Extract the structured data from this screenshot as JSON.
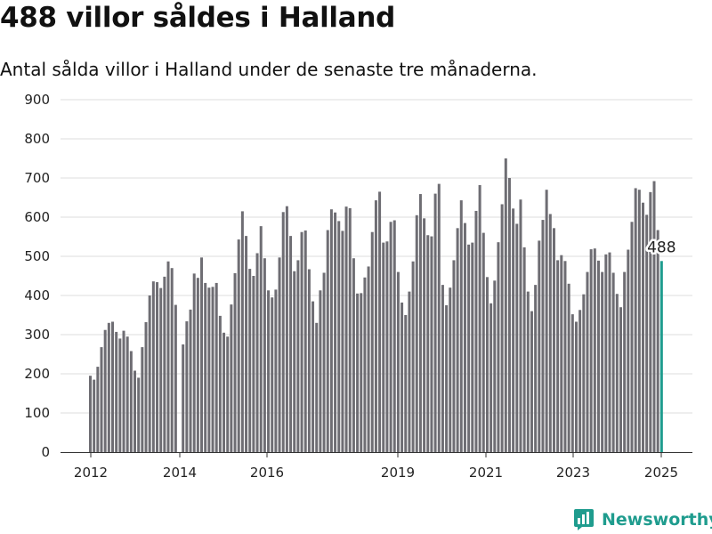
{
  "header": {
    "title": "488 villor såldes i Halland",
    "subtitle": "Antal sålda villor i Halland under de senaste tre månaderna."
  },
  "brand": {
    "name": "Newsworthy",
    "color": "#1f9c8e"
  },
  "colors": {
    "bar": "#6e6d73",
    "highlight": "#1f9c8e",
    "grid": "#dddddd",
    "axis": "#333333"
  },
  "chart_data": {
    "type": "bar",
    "title": "488 villor såldes i Halland",
    "subtitle": "Antal sålda villor i Halland under de senaste tre månaderna.",
    "xlabel": "",
    "ylabel": "",
    "ylim": [
      0,
      900
    ],
    "yticks": [
      0,
      100,
      200,
      300,
      400,
      500,
      600,
      700,
      800,
      900
    ],
    "xticks": [
      "2012",
      "2014",
      "2016",
      "2019",
      "2021",
      "2023",
      "2025"
    ],
    "grid": true,
    "series": [
      {
        "values": [
          195,
          185,
          218,
          268,
          312,
          330,
          333,
          307,
          290,
          310,
          295,
          258,
          208,
          190,
          268,
          332,
          400,
          436,
          434,
          419,
          448,
          487,
          470,
          376,
          0,
          275,
          334,
          364,
          456,
          445,
          497,
          432,
          420,
          422,
          432,
          348,
          305,
          295,
          377,
          457,
          543,
          615,
          552,
          468,
          450,
          508,
          577,
          495,
          413,
          395,
          415,
          497,
          613,
          628,
          552,
          462,
          490,
          562,
          566,
          467,
          385,
          330,
          413,
          458,
          567,
          620,
          612,
          590,
          565,
          627,
          623,
          495,
          405,
          406,
          446,
          474,
          562,
          643,
          665,
          535,
          538,
          588,
          592,
          460,
          382,
          350,
          410,
          487,
          605,
          659,
          597,
          554,
          551,
          660,
          685,
          427,
          375,
          420,
          490,
          572,
          643,
          585,
          530,
          535,
          616,
          682,
          560,
          447,
          380,
          438,
          536,
          633,
          750,
          700,
          622,
          583,
          645,
          523,
          410,
          360,
          427,
          540,
          593,
          670,
          608,
          572,
          490,
          503,
          488,
          430,
          352,
          333,
          363,
          403,
          460,
          518,
          520,
          489,
          460,
          505,
          510,
          458,
          404,
          370,
          460,
          517,
          588,
          674,
          670,
          637,
          606,
          664,
          692,
          567,
          488
        ],
        "highlight_last": true,
        "last_label": "488"
      }
    ]
  }
}
